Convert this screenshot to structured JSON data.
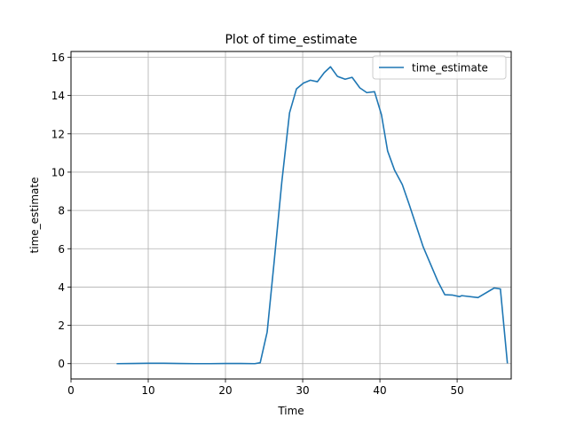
{
  "chart_data": {
    "type": "line",
    "title": "Plot of time_estimate",
    "xlabel": "Time",
    "ylabel": "time_estimate",
    "xlim": [
      0,
      57
    ],
    "ylim": [
      -0.8,
      16.3
    ],
    "xticks": [
      0,
      10,
      20,
      30,
      40,
      50
    ],
    "yticks": [
      0,
      2,
      4,
      6,
      8,
      10,
      12,
      14,
      16
    ],
    "grid": true,
    "legend_position": "top-right",
    "series": [
      {
        "name": "time_estimate",
        "color": "#1f77b4",
        "x": [
          6,
          8,
          10,
          12,
          14,
          16,
          18,
          20,
          22,
          23.8,
          24.5,
          25.4,
          26.3,
          27.3,
          28.3,
          29.2,
          30.1,
          31.0,
          31.9,
          32.8,
          33.6,
          34.5,
          35.5,
          36.4,
          37.4,
          38.3,
          39.3,
          40.2,
          41.0,
          41.9,
          42.9,
          43.8,
          44.7,
          45.6,
          46.6,
          47.5,
          48.4,
          49.4,
          50.3,
          50.6,
          52.7,
          54.8,
          55.6,
          56.5
        ],
        "y": [
          0.0,
          0.01,
          0.02,
          0.02,
          0.01,
          0.0,
          0.0,
          0.01,
          0.01,
          0.0,
          0.05,
          1.65,
          5.3,
          9.5,
          13.1,
          14.35,
          14.65,
          14.8,
          14.72,
          15.2,
          15.5,
          15.0,
          14.85,
          14.95,
          14.4,
          14.15,
          14.2,
          13.0,
          11.1,
          10.1,
          9.35,
          8.3,
          7.2,
          6.1,
          5.15,
          4.3,
          3.6,
          3.58,
          3.5,
          3.55,
          3.45,
          3.95,
          3.9,
          0.05
        ]
      }
    ]
  }
}
